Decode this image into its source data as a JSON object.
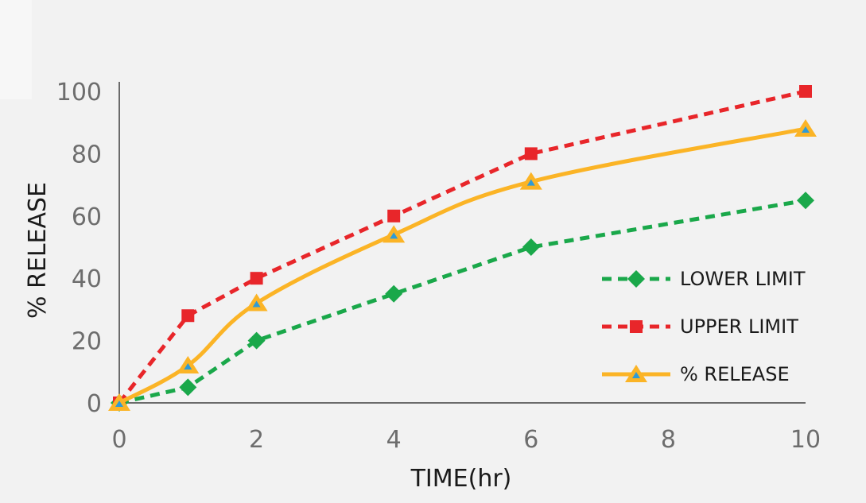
{
  "chart_data": {
    "type": "line",
    "title": "",
    "xlabel": "TIME(hr)",
    "ylabel": "% RELEASE",
    "xlim": [
      0,
      10
    ],
    "ylim": [
      0,
      100
    ],
    "x_ticks": [
      0,
      2,
      4,
      6,
      8,
      10
    ],
    "y_ticks": [
      0,
      20,
      40,
      60,
      80,
      100
    ],
    "x": [
      0,
      1,
      2,
      4,
      6,
      10
    ],
    "grid": false,
    "legend_position": "right",
    "series": [
      {
        "name": "LOWER LIMIT",
        "values": [
          0,
          5,
          20,
          35,
          50,
          65
        ],
        "color": "#1aa84a",
        "line_style": "dashed",
        "marker": "diamond"
      },
      {
        "name": "UPPER LIMIT",
        "values": [
          0,
          28,
          40,
          60,
          80,
          100
        ],
        "color": "#e8262a",
        "line_style": "dashed",
        "marker": "square"
      },
      {
        "name": "% RELEASE",
        "values": [
          0,
          12,
          32,
          54,
          71,
          88
        ],
        "color": "#fbb426",
        "line_style": "solid",
        "marker": "triangle",
        "marker_inner_color": "#2f9bd7"
      }
    ]
  }
}
